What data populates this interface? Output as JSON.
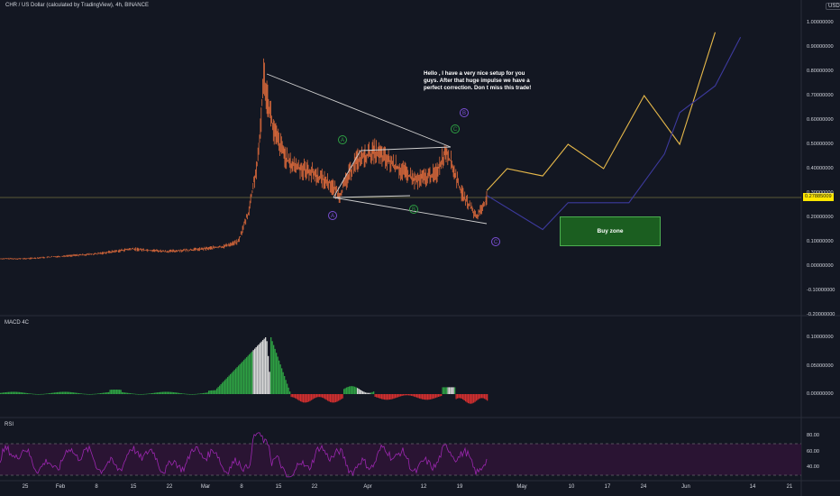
{
  "header": {
    "symbol_title": "CHR / US Dollar (calculated by TradingView), 4h, BINANCE",
    "currency_badge": "USD"
  },
  "note": {
    "text": "Hello ,  I  have a very nice setup for you guys. After that huge impulse we have a perfect correction. Don t miss this trade!"
  },
  "buy_zone": {
    "label": "Buy zone"
  },
  "last_price": "0.27885009",
  "indicators": {
    "macd_label": "MACD 4C",
    "rsi_label": "RSI"
  },
  "wave_labels": {
    "green": [
      "A",
      "B",
      "C"
    ],
    "purple": [
      "A",
      "B",
      "C"
    ]
  },
  "colors": {
    "background": "#131722",
    "candles": "#e06b3b",
    "projection_yellow": "#e6b84a",
    "projection_purple": "#3d3a9e",
    "macd_green": "#2ea043",
    "macd_red": "#d32f2f",
    "macd_white": "#d8d8d8",
    "rsi_line": "#9c27b0",
    "rsi_band": "#2a1433",
    "last_price_bg": "#ffe600",
    "buy_zone_bg": "#1b5e20"
  },
  "chart_data": [
    {
      "type": "line",
      "title": "CHR / US Dollar (calculated by TradingView), 4h, BINANCE",
      "x_ticks": [
        "25",
        "Feb",
        "8",
        "15",
        "22",
        "Mar",
        "8",
        "15",
        "22",
        "Apr",
        "12",
        "19",
        "May",
        "10",
        "17",
        "24",
        "Jun",
        "14",
        "21"
      ],
      "y_ticks": [
        "1.00000000",
        "0.90000000",
        "0.80000000",
        "0.70000000",
        "0.60000000",
        "0.50000000",
        "0.40000000",
        "0.30000000",
        "0.20000000",
        "0.10000000",
        "0.00000000",
        "-0.10000000",
        "-0.20000000"
      ],
      "ylim": [
        -0.2,
        1.0
      ],
      "series": [
        {
          "x": [
            "2021-01-20",
            "2021-01-25",
            "2021-02-01",
            "2021-02-08",
            "2021-02-15",
            "2021-02-22",
            "2021-03-01",
            "2021-03-05",
            "2021-03-08",
            "2021-03-10",
            "2021-03-12",
            "2021-03-13",
            "2021-03-15",
            "2021-03-18",
            "2021-03-22",
            "2021-03-26",
            "2021-03-28",
            "2021-03-31",
            "2021-04-04",
            "2021-04-08",
            "2021-04-12",
            "2021-04-16",
            "2021-04-18",
            "2021-04-21",
            "2021-04-24",
            "2021-04-26"
          ],
          "values": [
            0.03,
            0.03,
            0.04,
            0.05,
            0.07,
            0.06,
            0.07,
            0.08,
            0.1,
            0.22,
            0.45,
            0.78,
            0.55,
            0.42,
            0.39,
            0.34,
            0.29,
            0.43,
            0.47,
            0.41,
            0.35,
            0.38,
            0.48,
            0.3,
            0.2,
            0.28
          ]
        },
        {
          "name": "",
          "x": [
            "2021-04-26",
            "2021-04-30",
            "2021-05-07",
            "2021-05-12",
            "2021-05-19",
            "2021-05-27",
            "2021-06-03",
            "2021-06-10"
          ],
          "values": [
            0.31,
            0.4,
            0.37,
            0.5,
            0.4,
            0.7,
            0.5,
            0.96
          ]
        },
        {
          "name": "",
          "x": [
            "2021-04-26",
            "2021-05-07",
            "2021-05-12",
            "2021-05-24",
            "2021-05-31",
            "2021-06-03",
            "2021-06-10",
            "2021-06-15"
          ],
          "values": [
            0.29,
            0.15,
            0.26,
            0.26,
            0.46,
            0.63,
            0.74,
            0.94
          ]
        }
      ],
      "annotations": {
        "wave_points_green": [
          {
            "label": "A",
            "x": "2021-03-28",
            "y": 0.5
          },
          {
            "label": "B",
            "x": "2021-04-13",
            "y": 0.22
          },
          {
            "label": "C",
            "x": "2021-04-19",
            "y": 0.59
          }
        ],
        "wave_points_purple": [
          {
            "label": "A",
            "x": "2021-03-23",
            "y": 0.2
          },
          {
            "label": "B",
            "x": "2021-04-22",
            "y": 0.62
          },
          {
            "label": "C",
            "x": "2021-04-24",
            "y": 0.1
          }
        ],
        "buy_zone": {
          "label": "Buy zone",
          "x_from": "2021-05-08",
          "x_to": "2021-05-29",
          "y_from": 0.08,
          "y_to": 0.2
        }
      }
    },
    {
      "type": "bar",
      "title": "MACD 4C",
      "y_ticks": [
        "0.10000000",
        "0.05000000",
        "0.00000000"
      ],
      "ylim": [
        -0.015,
        0.12
      ]
    },
    {
      "type": "line",
      "title": "RSI",
      "y_ticks": [
        "80.00",
        "60.00",
        "40.00"
      ],
      "ylim": [
        20,
        90
      ],
      "band": [
        30,
        70
      ]
    }
  ]
}
